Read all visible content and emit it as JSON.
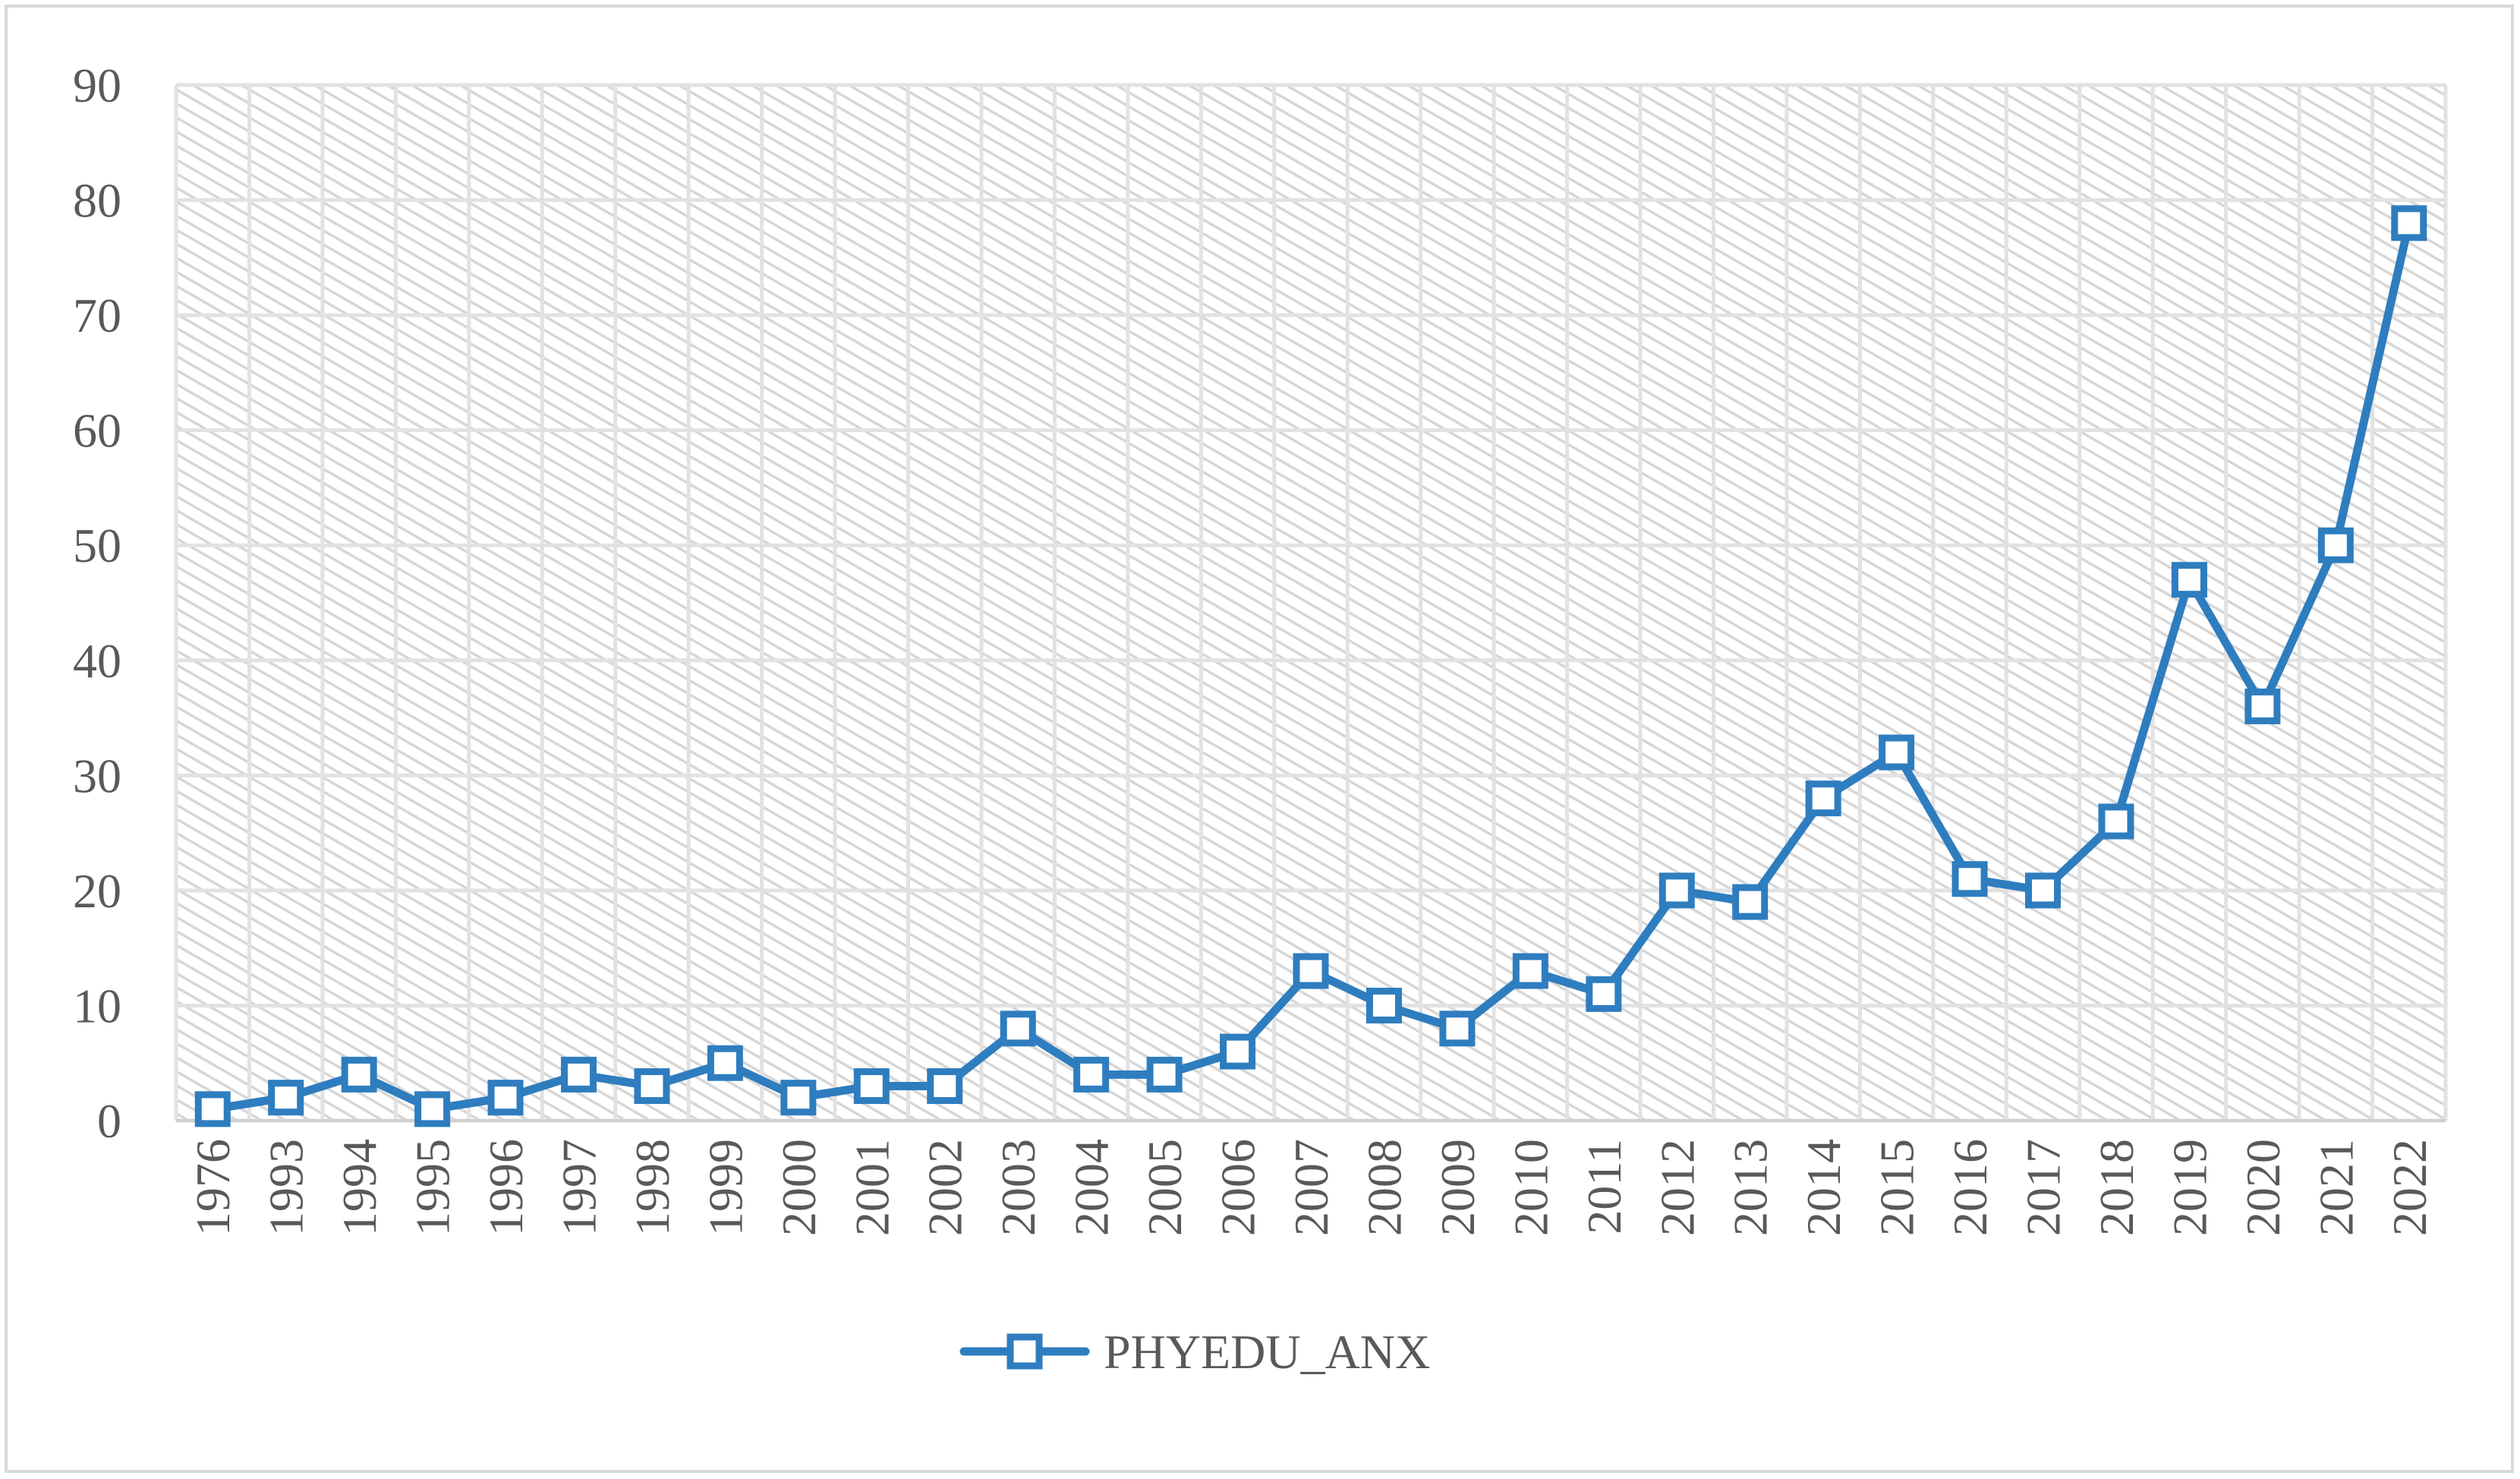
{
  "chart_data": {
    "type": "line",
    "title": "",
    "xlabel": "",
    "ylabel": "",
    "categories": [
      "1976",
      "1993",
      "1994",
      "1995",
      "1996",
      "1997",
      "1998",
      "1999",
      "2000",
      "2001",
      "2002",
      "2003",
      "2004",
      "2005",
      "2006",
      "2007",
      "2008",
      "2009",
      "2010",
      "2011",
      "2012",
      "2013",
      "2014",
      "2015",
      "2016",
      "2017",
      "2018",
      "2019",
      "2020",
      "2021",
      "2022"
    ],
    "series": [
      {
        "name": "PHYEDU_ANX",
        "values": [
          1,
          2,
          4,
          1,
          2,
          4,
          3,
          5,
          2,
          3,
          3,
          8,
          4,
          4,
          6,
          13,
          10,
          8,
          13,
          11,
          20,
          19,
          28,
          32,
          21,
          20,
          26,
          47,
          36,
          50,
          78
        ],
        "color": "#2e7dbf",
        "marker": "square-open"
      }
    ],
    "ylim": [
      0,
      90
    ],
    "yticks": [
      0,
      10,
      20,
      30,
      40,
      50,
      60,
      70,
      80,
      90
    ],
    "grid": true,
    "legend": "bottom-center",
    "plot_background": "hatched-gray"
  }
}
